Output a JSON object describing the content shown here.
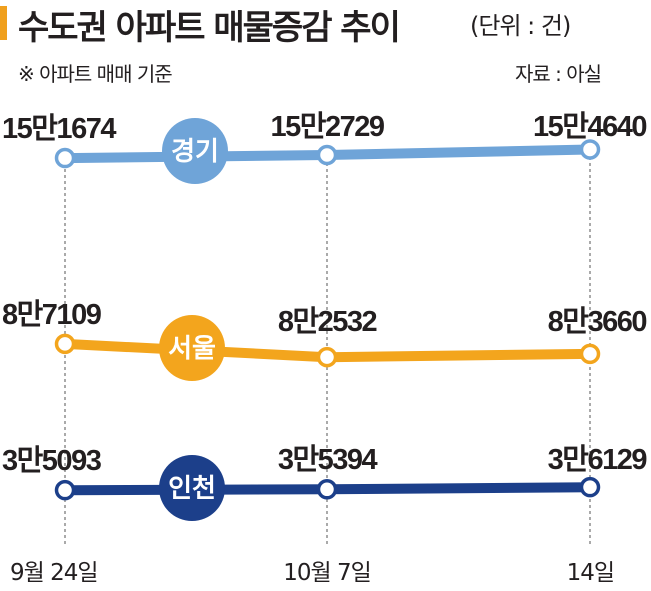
{
  "header": {
    "title": "수도권 아파트 매물증감 추이",
    "unit": "(단위 : 건)",
    "note": "※ 아파트 매매 기준",
    "source": "자료 : 아실"
  },
  "chart_data": {
    "type": "line",
    "title": "수도권 아파트 매물증감 추이",
    "x": [
      "9월 24일",
      "10월 7일",
      "14일"
    ],
    "series": [
      {
        "name": "경기",
        "values": [
          151674,
          152729,
          154640
        ],
        "labels": [
          "15만1674",
          "15만2729",
          "15만4640"
        ],
        "color": "#6fa4d8"
      },
      {
        "name": "서울",
        "values": [
          87109,
          82532,
          83660
        ],
        "labels": [
          "8만7109",
          "8만2532",
          "8만3660"
        ],
        "color": "#f3a51d"
      },
      {
        "name": "인천",
        "values": [
          35093,
          35394,
          36129
        ],
        "labels": [
          "3만5093",
          "3만5394",
          "3만6129"
        ],
        "color": "#1c3f8a"
      }
    ],
    "grid": false,
    "legend": "inline"
  }
}
